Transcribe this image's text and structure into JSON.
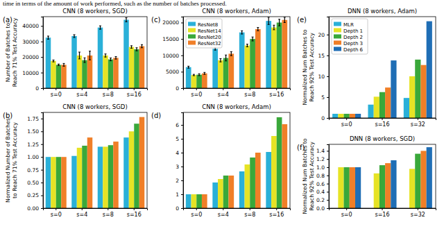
{
  "caption": "time in terms of the amount of work performed, such as the number of batches processed.",
  "chart_data": [
    {
      "type": "bar",
      "panel_label": "(a)",
      "title": "CNN (8 workers, SGD)",
      "y_label": [
        "Number of Batches to",
        "Reach 71% Test Accuracy"
      ],
      "categories": [
        "s=0",
        "s=4",
        "s=8",
        "s=16"
      ],
      "series": [
        {
          "color": "#2ab0d8",
          "values": [
            32500,
            33500,
            39000,
            44000
          ],
          "errors": [
            1000,
            900,
            1100,
            1300
          ]
        },
        {
          "color": "#e6e325",
          "values": [
            17500,
            21000,
            21000,
            26500
          ],
          "errors": [
            600,
            2200,
            1000,
            800
          ]
        },
        {
          "color": "#3aa83a",
          "values": [
            15000,
            18000,
            18500,
            25000
          ],
          "errors": [
            500,
            1500,
            900,
            1000
          ]
        },
        {
          "color": "#f07f28",
          "values": [
            15000,
            21000,
            19500,
            27000
          ],
          "errors": [
            900,
            2800,
            800,
            1000
          ]
        }
      ],
      "ylim": [
        0,
        46000
      ],
      "yticks": [
        0,
        10000,
        20000,
        30000,
        40000
      ]
    },
    {
      "type": "bar",
      "panel_label": "(b)",
      "title": "CNN (8 workers, SGD)",
      "y_label": [
        "Normalized Number of Batches",
        "to Reach 71% Test Accuracy"
      ],
      "categories": [
        "s=0",
        "s=4",
        "s=8",
        "s=16"
      ],
      "series": [
        {
          "color": "#2ab0d8",
          "values": [
            1,
            1.02,
            1.2,
            1.38
          ]
        },
        {
          "color": "#e6e325",
          "values": [
            1,
            1.18,
            1.2,
            1.5
          ]
        },
        {
          "color": "#3aa83a",
          "values": [
            1,
            1.22,
            1.23,
            1.65
          ]
        },
        {
          "color": "#f07f28",
          "values": [
            1,
            1.38,
            1.3,
            1.78
          ]
        }
      ],
      "ylim": [
        0,
        1.87
      ],
      "yticks": [
        {
          "value": 0,
          "label": "0.00"
        },
        0.25,
        {
          "value": 0.5,
          "label": "0.50"
        },
        0.75,
        {
          "value": 1,
          "label": "1.00"
        },
        1.25,
        {
          "value": 1.5,
          "label": "1.50"
        },
        1.75
      ]
    },
    {
      "type": "bar",
      "panel_label": "(c)",
      "title": "CNN (8 workers, Adam)",
      "categories": [
        "s=0",
        "s=4",
        "s=8",
        "s=16"
      ],
      "legend": "upper left",
      "series": [
        {
          "name": "ResNet8",
          "color": "#2ab0d8",
          "values": [
            6400,
            12000,
            17000,
            20500
          ],
          "errors": [
            300,
            400,
            500,
            1100
          ]
        },
        {
          "name": "ResNet14",
          "color": "#e6e325",
          "values": [
            4000,
            8500,
            13000,
            18500
          ],
          "errors": [
            200,
            500,
            400,
            700
          ]
        },
        {
          "name": "ResNet20",
          "color": "#3aa83a",
          "values": [
            4100,
            9200,
            15000,
            20000
          ],
          "errors": [
            300,
            900,
            600,
            1000
          ]
        },
        {
          "name": "ResNet32",
          "color": "#f07f28",
          "values": [
            4500,
            10500,
            18000,
            20800
          ],
          "errors": [
            300,
            600,
            500,
            800
          ]
        }
      ],
      "ylim": [
        0,
        21800
      ],
      "yticks": [
        0,
        5000,
        10000,
        15000,
        20000
      ]
    },
    {
      "type": "bar",
      "panel_label": "(d)",
      "title": "CNN (8 workers, Adam)",
      "categories": [
        "s=0",
        "s=4",
        "s=8",
        "s=16"
      ],
      "series": [
        {
          "color": "#2ab0d8",
          "values": [
            1,
            1.85,
            2.65,
            4.05
          ]
        },
        {
          "color": "#e6e325",
          "values": [
            1,
            2.1,
            3.15,
            5.2
          ]
        },
        {
          "color": "#3aa83a",
          "values": [
            1,
            2.35,
            3.65,
            6.55
          ]
        },
        {
          "color": "#f07f28",
          "values": [
            1,
            2.35,
            4.0,
            6.05
          ]
        }
      ],
      "ylim": [
        0,
        6.9
      ],
      "yticks": [
        0,
        1,
        2,
        3,
        4,
        5,
        6
      ]
    },
    {
      "type": "bar",
      "panel_label": "(e)",
      "title": "DNN (8 workers, Adam)",
      "y_label": [
        "Normalized Num Batches to",
        "Reach 92% Test Accuracy"
      ],
      "categories": [
        "s=0",
        "s=16",
        "s=32"
      ],
      "legend": "upper left",
      "series": [
        {
          "name": "MLR",
          "color": "#2ab0d8",
          "values": [
            1,
            3.2,
            4.8
          ]
        },
        {
          "name": "Depth 1",
          "color": "#e6e325",
          "values": [
            1,
            5.1,
            10
          ]
        },
        {
          "name": "Depth 2",
          "color": "#3aa83a",
          "values": [
            1,
            6.2,
            14
          ]
        },
        {
          "name": "Depth 3",
          "color": "#f07f28",
          "values": [
            1,
            7.3,
            12.7
          ]
        },
        {
          "name": "Depth 6",
          "color": "#1f6eb5",
          "values": [
            1,
            13.8,
            23.2
          ]
        }
      ],
      "ylim": [
        0,
        24.3
      ],
      "yticks": [
        0,
        5,
        10,
        15,
        20
      ]
    },
    {
      "type": "bar",
      "panel_label": "(f)",
      "title": "DNN (8 workers, SGD)",
      "y_label": [
        "Normalized Num Batches to",
        "Reach 92% Test Accuracy"
      ],
      "categories": [
        "s=0",
        "s=16",
        "s=32"
      ],
      "series": [
        {
          "color": "#2ab0d8",
          "values": [
            null,
            null,
            null
          ]
        },
        {
          "color": "#e6e325",
          "values": [
            1,
            0.85,
            0.96
          ]
        },
        {
          "color": "#3aa83a",
          "values": [
            1,
            1.05,
            1.33
          ]
        },
        {
          "color": "#f07f28",
          "values": [
            1,
            1.1,
            1.4
          ]
        },
        {
          "color": "#1f6eb5",
          "values": [
            1,
            1.17,
            1.49
          ]
        }
      ],
      "ylim": [
        0,
        1.56
      ],
      "yticks": [
        {
          "value": 0,
          "label": "0.0"
        },
        0.2,
        0.4,
        0.6,
        0.8,
        {
          "value": 1,
          "label": "1.0"
        },
        1.2,
        1.4
      ]
    }
  ]
}
